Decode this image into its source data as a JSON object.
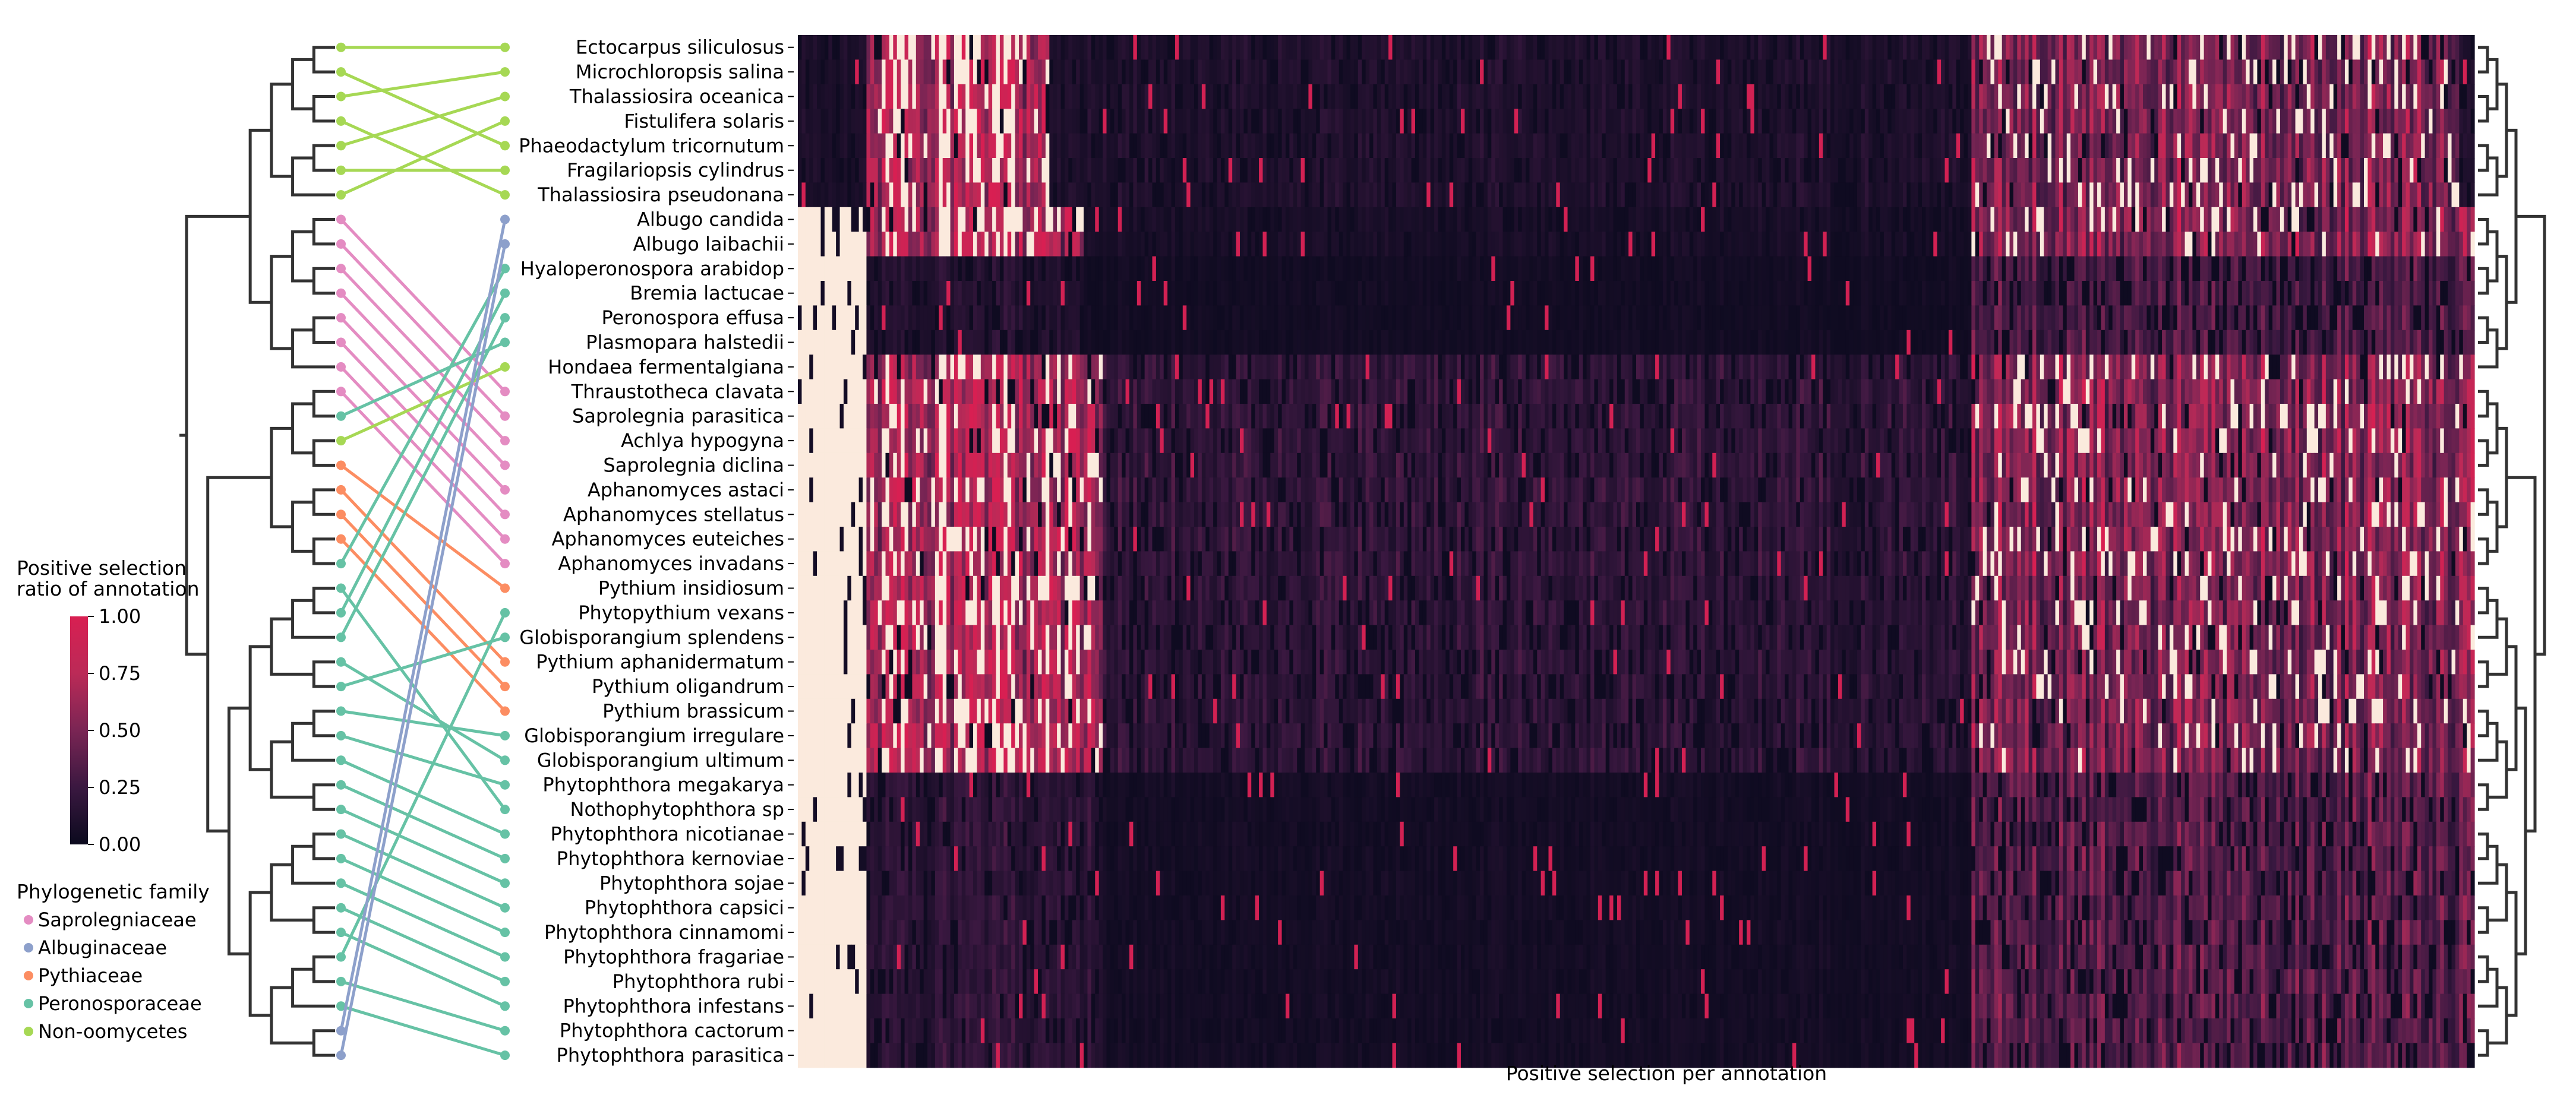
{
  "chart_data": {
    "type": "heatmap",
    "xlabel": "Positive selection per annotation",
    "colorbar": {
      "title_line1": "Positive selection",
      "title_line2": "ratio of annotation",
      "range": [
        0,
        1
      ],
      "ticks": [
        "0.00",
        "0.25",
        "0.50",
        "0.75",
        "1.00"
      ],
      "colors": [
        "#0b0a1e",
        "#3a1840",
        "#7a2554",
        "#bb2a57",
        "#d81f52"
      ]
    },
    "highlight_color": "#fbeadd",
    "legend": {
      "title": "Phylogenetic family",
      "placement": "lower-left",
      "items": [
        {
          "label": "Saprolegniaceae",
          "color": "#e48cc2"
        },
        {
          "label": "Albuginaceae",
          "color": "#8da0cb"
        },
        {
          "label": "Pythiaceae",
          "color": "#fc8d62"
        },
        {
          "label": "Peronosporaceae",
          "color": "#66c2a5"
        },
        {
          "label": "Non-oomycetes",
          "color": "#a6d854"
        }
      ]
    },
    "rows": [
      {
        "label": "Ectocarpus siliculosus",
        "family": "Non-oomycetes",
        "group": 0
      },
      {
        "label": "Microchloropsis salina",
        "family": "Non-oomycetes",
        "group": 0
      },
      {
        "label": "Thalassiosira oceanica",
        "family": "Non-oomycetes",
        "group": 0
      },
      {
        "label": "Fistulifera solaris",
        "family": "Non-oomycetes",
        "group": 0
      },
      {
        "label": "Phaeodactylum tricornutum",
        "family": "Non-oomycetes",
        "group": 0
      },
      {
        "label": "Fragilariopsis cylindrus",
        "family": "Non-oomycetes",
        "group": 0
      },
      {
        "label": "Thalassiosira pseudonana",
        "family": "Non-oomycetes",
        "group": 0
      },
      {
        "label": "Albugo candida",
        "family": "Albuginaceae",
        "group": 1
      },
      {
        "label": "Albugo laibachii",
        "family": "Albuginaceae",
        "group": 1
      },
      {
        "label": "Hyaloperonospora arabidop",
        "family": "Peronosporaceae",
        "group": 2
      },
      {
        "label": "Bremia lactucae",
        "family": "Peronosporaceae",
        "group": 2
      },
      {
        "label": "Peronospora effusa",
        "family": "Peronosporaceae",
        "group": 2
      },
      {
        "label": "Plasmopara halstedii",
        "family": "Peronosporaceae",
        "group": 2
      },
      {
        "label": "Hondaea fermentalgiana",
        "family": "Non-oomycetes",
        "group": 3
      },
      {
        "label": "Thraustotheca clavata",
        "family": "Saprolegniaceae",
        "group": 3
      },
      {
        "label": "Saprolegnia parasitica",
        "family": "Saprolegniaceae",
        "group": 3
      },
      {
        "label": "Achlya hypogyna",
        "family": "Saprolegniaceae",
        "group": 3
      },
      {
        "label": "Saprolegnia diclina",
        "family": "Saprolegniaceae",
        "group": 3
      },
      {
        "label": "Aphanomyces astaci",
        "family": "Saprolegniaceae",
        "group": 3
      },
      {
        "label": "Aphanomyces stellatus",
        "family": "Saprolegniaceae",
        "group": 3
      },
      {
        "label": "Aphanomyces euteiches",
        "family": "Saprolegniaceae",
        "group": 3
      },
      {
        "label": "Aphanomyces invadans",
        "family": "Saprolegniaceae",
        "group": 3
      },
      {
        "label": "Pythium insidiosum",
        "family": "Pythiaceae",
        "group": 4
      },
      {
        "label": "Phytopythium vexans",
        "family": "Peronosporaceae",
        "group": 4
      },
      {
        "label": "Globisporangium splendens",
        "family": "Peronosporaceae",
        "group": 4
      },
      {
        "label": "Pythium aphanidermatum",
        "family": "Pythiaceae",
        "group": 4
      },
      {
        "label": "Pythium oligandrum",
        "family": "Pythiaceae",
        "group": 4
      },
      {
        "label": "Pythium brassicum",
        "family": "Pythiaceae",
        "group": 4
      },
      {
        "label": "Globisporangium irregulare",
        "family": "Peronosporaceae",
        "group": 4
      },
      {
        "label": "Globisporangium ultimum",
        "family": "Peronosporaceae",
        "group": 4
      },
      {
        "label": "Phytophthora megakarya",
        "family": "Peronosporaceae",
        "group": 5
      },
      {
        "label": "Nothophytophthora sp",
        "family": "Peronosporaceae",
        "group": 5
      },
      {
        "label": "Phytophthora nicotianae",
        "family": "Peronosporaceae",
        "group": 5
      },
      {
        "label": "Phytophthora kernoviae",
        "family": "Peronosporaceae",
        "group": 5
      },
      {
        "label": "Phytophthora sojae",
        "family": "Peronosporaceae",
        "group": 5
      },
      {
        "label": "Phytophthora capsici",
        "family": "Peronosporaceae",
        "group": 5
      },
      {
        "label": "Phytophthora cinnamomi",
        "family": "Peronosporaceae",
        "group": 5
      },
      {
        "label": "Phytophthora fragariae",
        "family": "Peronosporaceae",
        "group": 5
      },
      {
        "label": "Phytophthora rubi",
        "family": "Peronosporaceae",
        "group": 5
      },
      {
        "label": "Phytophthora infestans",
        "family": "Peronosporaceae",
        "group": 5
      },
      {
        "label": "Phytophthora cactorum",
        "family": "Peronosporaceae",
        "group": 5
      },
      {
        "label": "Phytophthora parasitica",
        "family": "Peronosporaceae",
        "group": 5
      }
    ],
    "tanglegram_links": [
      [
        0,
        0
      ],
      [
        1,
        4
      ],
      [
        2,
        1
      ],
      [
        3,
        6
      ],
      [
        4,
        2
      ],
      [
        5,
        5
      ],
      [
        6,
        3
      ],
      [
        7,
        14
      ],
      [
        8,
        15
      ],
      [
        9,
        16
      ],
      [
        10,
        17
      ],
      [
        11,
        18
      ],
      [
        12,
        19
      ],
      [
        13,
        20
      ],
      [
        14,
        21
      ],
      [
        15,
        12
      ],
      [
        16,
        13
      ],
      [
        17,
        22
      ],
      [
        18,
        25
      ],
      [
        19,
        26
      ],
      [
        20,
        27
      ],
      [
        21,
        9
      ],
      [
        22,
        31
      ],
      [
        23,
        10
      ],
      [
        24,
        11
      ],
      [
        25,
        29
      ],
      [
        26,
        24
      ],
      [
        27,
        28
      ],
      [
        28,
        30
      ],
      [
        29,
        32
      ],
      [
        30,
        33
      ],
      [
        31,
        34
      ],
      [
        32,
        35
      ],
      [
        33,
        36
      ],
      [
        34,
        37
      ],
      [
        35,
        38
      ],
      [
        36,
        39
      ],
      [
        37,
        23
      ],
      [
        38,
        40
      ],
      [
        39,
        41
      ],
      [
        40,
        7
      ],
      [
        41,
        8
      ]
    ],
    "row_blocks": [
      {
        "name": "non-oomycete rows",
        "rows": [
          0,
          6
        ],
        "bands": [
          {
            "c0": 0.04,
            "c1": 0.15,
            "level": 0.9
          },
          {
            "c0": 0.15,
            "c1": 0.7,
            "level": 0.12
          },
          {
            "c0": 0.7,
            "c1": 0.99,
            "level": 0.55
          }
        ]
      },
      {
        "name": "albugo rows",
        "rows": [
          7,
          8
        ],
        "bands": [
          {
            "c0": 0.0,
            "c1": 0.04,
            "level": 1.2
          },
          {
            "c0": 0.04,
            "c1": 0.17,
            "level": 0.85
          },
          {
            "c0": 0.17,
            "c1": 0.7,
            "level": 0.08
          },
          {
            "c0": 0.7,
            "c1": 1.0,
            "level": 0.6
          }
        ]
      },
      {
        "name": "peronosporaceae upper rows",
        "rows": [
          9,
          12
        ],
        "bands": [
          {
            "c0": 0.0,
            "c1": 0.04,
            "level": 1.2
          },
          {
            "c0": 0.04,
            "c1": 0.17,
            "level": 0.15
          },
          {
            "c0": 0.17,
            "c1": 0.7,
            "level": 0.05
          },
          {
            "c0": 0.7,
            "c1": 1.0,
            "level": 0.35
          }
        ]
      },
      {
        "name": "saprolegniaceae rows",
        "rows": [
          13,
          21
        ],
        "bands": [
          {
            "c0": 0.0,
            "c1": 0.04,
            "level": 1.2
          },
          {
            "c0": 0.04,
            "c1": 0.18,
            "level": 0.85
          },
          {
            "c0": 0.18,
            "c1": 0.7,
            "level": 0.22
          },
          {
            "c0": 0.7,
            "c1": 1.0,
            "level": 0.6
          }
        ]
      },
      {
        "name": "pythiaceae rows",
        "rows": [
          22,
          29
        ],
        "bands": [
          {
            "c0": 0.0,
            "c1": 0.04,
            "level": 1.2
          },
          {
            "c0": 0.04,
            "c1": 0.18,
            "level": 0.9
          },
          {
            "c0": 0.18,
            "c1": 0.7,
            "level": 0.2
          },
          {
            "c0": 0.7,
            "c1": 1.0,
            "level": 0.55
          }
        ]
      },
      {
        "name": "phytophthora rows",
        "rows": [
          30,
          41
        ],
        "bands": [
          {
            "c0": 0.0,
            "c1": 0.04,
            "level": 1.2
          },
          {
            "c0": 0.04,
            "c1": 0.18,
            "level": 0.2
          },
          {
            "c0": 0.18,
            "c1": 0.7,
            "level": 0.06
          },
          {
            "c0": 0.7,
            "c1": 1.0,
            "level": 0.4
          }
        ]
      }
    ]
  }
}
